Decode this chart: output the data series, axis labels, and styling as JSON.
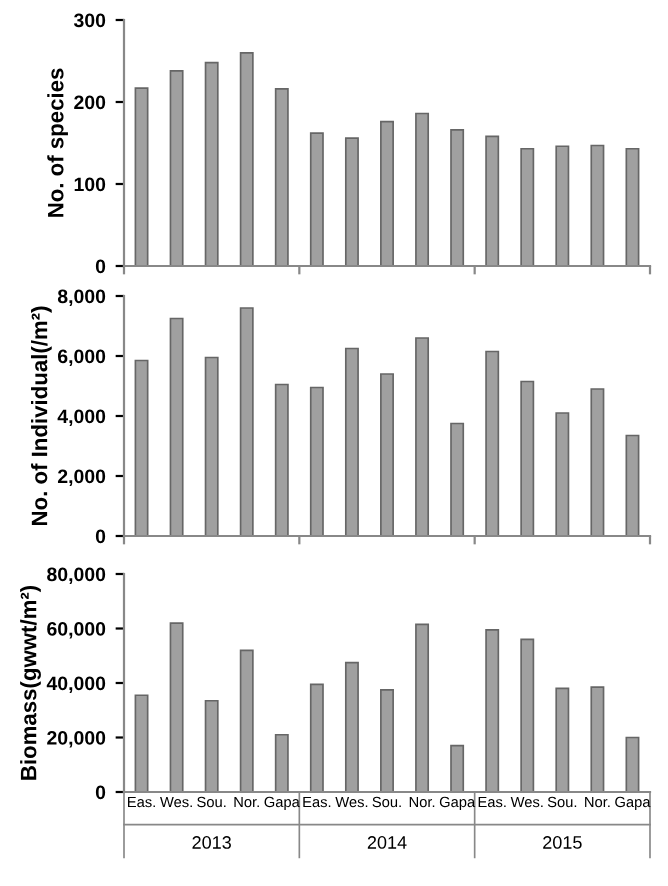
{
  "chart_data": [
    {
      "type": "bar",
      "ylabel": "No. of species",
      "categories": [
        null,
        null,
        null,
        null,
        null,
        null,
        null,
        null,
        null,
        null,
        null,
        null,
        null,
        null,
        null
      ],
      "values": [
        217,
        238,
        248,
        260,
        216,
        162,
        156,
        176,
        186,
        166,
        158,
        143,
        146,
        147,
        143
      ],
      "color": "#a0a0a0",
      "ylim": [
        0,
        300
      ],
      "yticks": [
        0,
        100,
        200,
        300
      ],
      "tick_labels": "y",
      "grid": false,
      "legend": false
    },
    {
      "type": "bar",
      "ylabel": "No. of Individual(/m²)",
      "categories": [
        null,
        null,
        null,
        null,
        null,
        null,
        null,
        null,
        null,
        null,
        null,
        null,
        null,
        null,
        null
      ],
      "values": [
        5850,
        7250,
        5950,
        7600,
        5050,
        4950,
        6250,
        5400,
        6600,
        3750,
        6150,
        5150,
        4100,
        4900,
        3350
      ],
      "color": "#a0a0a0",
      "ylim": [
        0,
        8000
      ],
      "yticks": [
        {
          "value": 0,
          "label": "0"
        },
        {
          "value": 2000,
          "label": "2,000"
        },
        {
          "value": 4000,
          "label": "4,000"
        },
        {
          "value": 6000,
          "label": "6,000"
        },
        {
          "value": 8000,
          "label": "8,000"
        }
      ],
      "tick_labels": "y",
      "grid": false,
      "legend": false
    },
    {
      "type": "bar",
      "ylabel": "Biomass(gwwt/m²)",
      "categories": [
        "Eas.",
        "Wes.",
        "Sou.",
        "Nor.",
        "Gapa",
        "Eas.",
        "Wes.",
        "Sou.",
        "Nor.",
        "Gapa",
        "Eas.",
        "Wes.",
        "Sou.",
        "Nor.",
        "Gapa"
      ],
      "values": [
        35500,
        62000,
        33500,
        52000,
        21000,
        39500,
        47500,
        37500,
        61500,
        17000,
        59500,
        56000,
        38000,
        38500,
        20000
      ],
      "color": "#a0a0a0",
      "ylim": [
        0,
        80000
      ],
      "yticks": [
        {
          "value": 0,
          "label": "0"
        },
        {
          "value": 20000,
          "label": "20,000"
        },
        {
          "value": 40000,
          "label": "40,000"
        },
        {
          "value": 60000,
          "label": "60,000"
        },
        {
          "value": 80000,
          "label": "80,000"
        }
      ],
      "annotations": [
        "2013",
        "2014",
        "2015"
      ],
      "grid": false,
      "legend": false
    }
  ]
}
